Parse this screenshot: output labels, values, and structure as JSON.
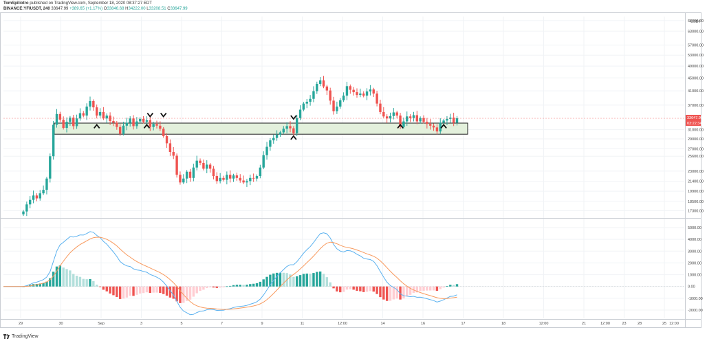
{
  "header": {
    "author": "TomSpiliotro",
    "published": "published on TradingView.com, September 18, 2020 08:37:27 EDT",
    "symbol": "BINANCE:YFIUSDT, 240",
    "last": "33647.99",
    "change": "+389.65 (+1.17%)",
    "o_label": "O",
    "o_value": "33846.68",
    "h_label": "H",
    "h_value": "34222.00",
    "l_label": "L",
    "l_value": "33208.51",
    "c_label": "C",
    "c_value": "33647.99"
  },
  "footer": {
    "brand": "TradingView"
  },
  "colors": {
    "up": "#26a69a",
    "down": "#ef5350",
    "macd_line": "#5ab1ef",
    "signal_line": "#f89a5e",
    "hist_up_strong": "#26a69a",
    "hist_up_weak": "#b2dfdb",
    "hist_down_strong": "#ef5350",
    "hist_down_weak": "#ffcdd2",
    "zone_fill": "#e3f0dc",
    "price_tag": "#ef5350"
  },
  "chart_data": [
    {
      "type": "candlestick",
      "title": "BINANCE:YFIUSDT, 240",
      "ylabel": "USDT",
      "log_scale": true,
      "ylim": [
        16500,
        70000
      ],
      "price_scale_ticks": [
        "68000.00",
        "63000.00",
        "57000.00",
        "53000.00",
        "49000.00",
        "45000.00",
        "41000.00",
        "37000.00",
        "31000.00",
        "29000.00",
        "27000.00",
        "25600.00",
        "23000.00",
        "21400.00",
        "19900.00",
        "18500.00",
        "17300.00"
      ],
      "price_scale_values": [
        68000,
        63000,
        57000,
        53000,
        49000,
        45000,
        41000,
        37000,
        31000,
        29000,
        27000,
        25600,
        23000,
        21400,
        19900,
        18500,
        17300
      ],
      "x_tick_labels": [
        "29",
        "30",
        "Sep",
        "3",
        "5",
        "7",
        "9",
        "11",
        "12:00",
        "14",
        "16",
        "17",
        "18",
        "12:00",
        "21",
        "23",
        "25",
        "12:00",
        "28",
        "12:00"
      ],
      "last_price": "33647.99",
      "countdown": "03:22:34",
      "support_zone": [
        30000,
        32500
      ],
      "markers_up": [
        {
          "index": 22,
          "price": 31800
        },
        {
          "index": 37,
          "price": 31800
        },
        {
          "index": 81,
          "price": 29300
        },
        {
          "index": 113,
          "price": 31800
        },
        {
          "index": 126,
          "price": 31800
        }
      ],
      "markers_down": [
        {
          "index": 38,
          "price": 34400
        },
        {
          "index": 42,
          "price": 34400
        },
        {
          "index": 81,
          "price": 33800
        }
      ],
      "close": [
        17200,
        18100,
        18700,
        19300,
        18900,
        19600,
        20100,
        21800,
        25600,
        32100,
        34700,
        33300,
        31400,
        32800,
        33800,
        31800,
        33600,
        34900,
        34300,
        36600,
        38100,
        36400,
        34300,
        35200,
        33600,
        34300,
        33000,
        32600,
        31600,
        30100,
        31900,
        32600,
        33600,
        31800,
        32900,
        33500,
        32800,
        33200,
        31600,
        32300,
        31900,
        31200,
        29600,
        28100,
        26400,
        25700,
        22400,
        21200,
        21800,
        22900,
        21900,
        23600,
        24800,
        24400,
        23400,
        24100,
        23400,
        22200,
        21400,
        21900,
        21600,
        22400,
        21800,
        22300,
        21900,
        21500,
        21200,
        21400,
        21900,
        21800,
        22200,
        23600,
        25800,
        27400,
        28700,
        29200,
        29900,
        30400,
        31200,
        31800,
        31300,
        30200,
        33700,
        35800,
        37400,
        37900,
        38700,
        40900,
        43100,
        44200,
        42300,
        41100,
        38200,
        35400,
        36600,
        38300,
        39600,
        42400,
        41300,
        40600,
        39800,
        40200,
        39600,
        40800,
        41400,
        40200,
        37400,
        35200,
        34100,
        33600,
        34200,
        35100,
        34300,
        31600,
        32900,
        34100,
        33700,
        34400,
        32900,
        33700,
        32800,
        32300,
        31900,
        31500,
        30600,
        32600,
        33100,
        33500,
        33800,
        32600,
        33648
      ]
    },
    {
      "type": "macd",
      "indicator_values": [
        "5000.00",
        "4000.00",
        "3000.00",
        "2000.00",
        "1000.00",
        "0.00",
        "-1000.00",
        "-2000.00"
      ],
      "ylim": [
        -2700,
        5700
      ]
    }
  ]
}
